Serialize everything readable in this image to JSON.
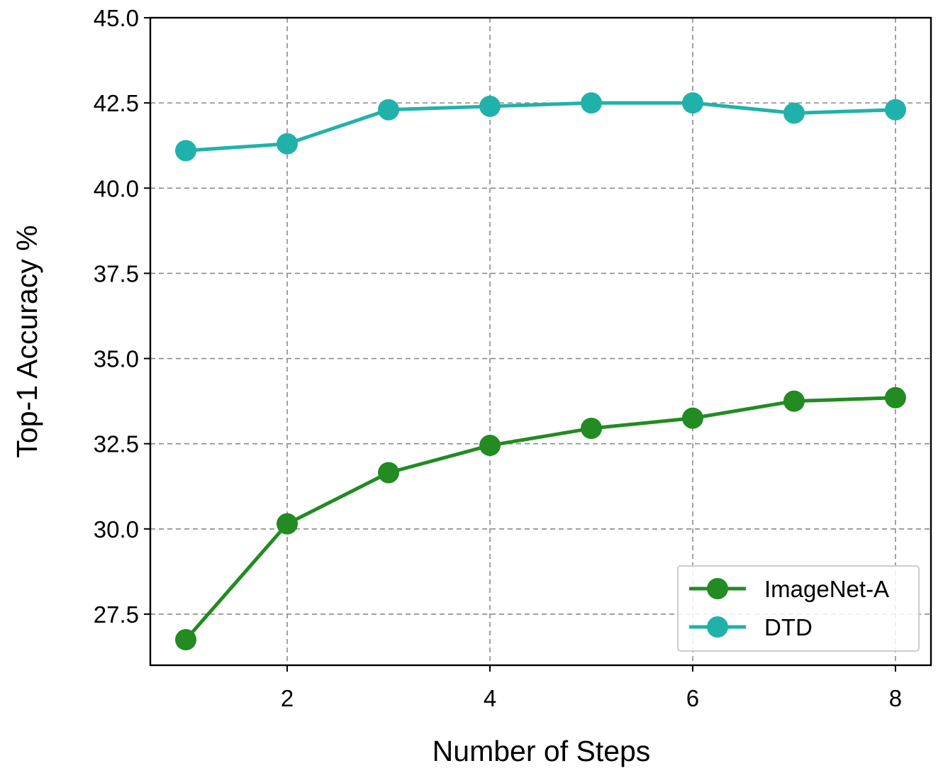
{
  "chart_data": {
    "type": "line",
    "title": "",
    "xlabel": "Number of Steps",
    "ylabel": "Top-1 Accuracy %",
    "xlim": [
      0.65,
      8.35
    ],
    "ylim": [
      26.0,
      45.0
    ],
    "xticks": [
      2,
      4,
      6,
      8
    ],
    "xtick_labels": [
      "2",
      "4",
      "6",
      "8"
    ],
    "yticks": [
      27.5,
      30.0,
      32.5,
      35.0,
      37.5,
      40.0,
      42.5,
      45.0
    ],
    "ytick_labels": [
      "27.5",
      "30.0",
      "32.5",
      "35.0",
      "37.5",
      "40.0",
      "42.5",
      "45.0"
    ],
    "grid": true,
    "legend_position": "lower-right",
    "x": [
      1,
      2,
      3,
      4,
      5,
      6,
      7,
      8
    ],
    "series": [
      {
        "name": "ImageNet-A",
        "color": "#228b22",
        "marker": "circle",
        "values": [
          26.75,
          30.15,
          31.65,
          32.45,
          32.95,
          33.25,
          33.75,
          33.85
        ]
      },
      {
        "name": "DTD",
        "color": "#20b2aa",
        "marker": "circle",
        "values": [
          41.1,
          41.3,
          42.3,
          42.4,
          42.5,
          42.5,
          42.2,
          42.3
        ]
      }
    ]
  }
}
